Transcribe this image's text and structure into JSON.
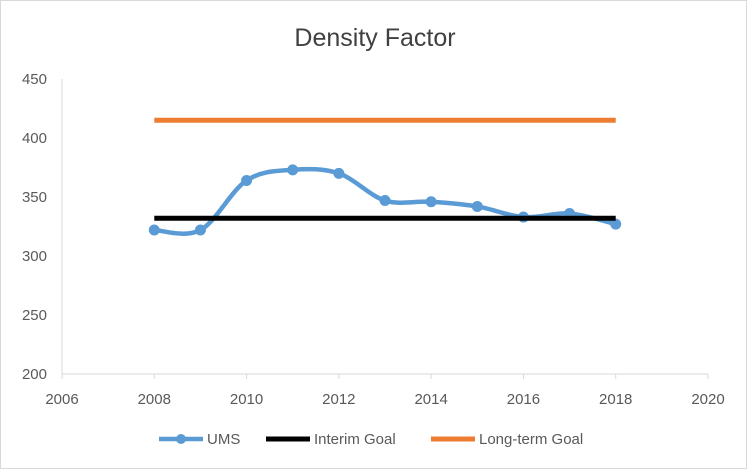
{
  "chart_data": {
    "type": "line",
    "title": "Density Factor",
    "xlabel": "",
    "ylabel": "",
    "xlim": [
      2006,
      2020
    ],
    "ylim": [
      200,
      450
    ],
    "x_ticks": [
      2006,
      2008,
      2010,
      2012,
      2014,
      2016,
      2018,
      2020
    ],
    "y_ticks": [
      200,
      250,
      300,
      350,
      400,
      450
    ],
    "grid": false,
    "legend_position": "bottom",
    "series": [
      {
        "name": "UMS",
        "color": "#5b9bd5",
        "smooth": true,
        "markers": true,
        "x": [
          2008,
          2009,
          2010,
          2011,
          2012,
          2013,
          2014,
          2015,
          2016,
          2017,
          2018
        ],
        "values": [
          322,
          322,
          364,
          373,
          370,
          347,
          346,
          342,
          333,
          336,
          327
        ]
      },
      {
        "name": "Interim Goal",
        "color": "#000000",
        "smooth": false,
        "markers": false,
        "x": [
          2008,
          2018
        ],
        "values": [
          332,
          332
        ]
      },
      {
        "name": "Long-term Goal",
        "color": "#ed7d31",
        "smooth": false,
        "markers": false,
        "x": [
          2008,
          2018
        ],
        "values": [
          415,
          415
        ]
      }
    ]
  }
}
